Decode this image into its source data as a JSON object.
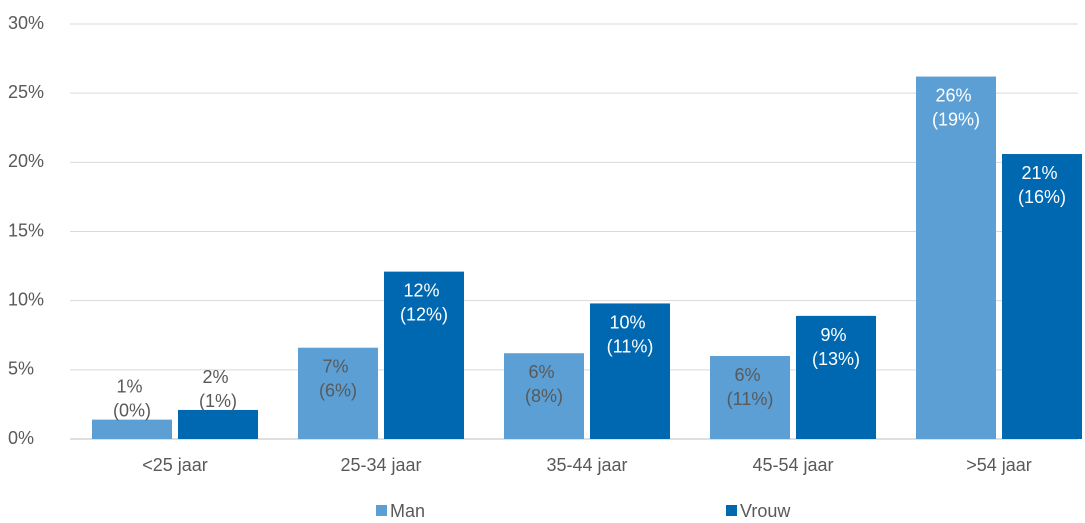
{
  "chart_data": {
    "type": "bar",
    "categories": [
      "<25 jaar",
      "25-34 jaar",
      "35-44 jaar",
      "45-54 jaar",
      ">54 jaar"
    ],
    "series": [
      {
        "name": "Man",
        "color": "#5b9fd4",
        "values": [
          1.4,
          6.6,
          6.2,
          6.0,
          26.2
        ],
        "value_labels": [
          "1% (0%)",
          "7% (6%)",
          "6% (8%)",
          "6% (11%)",
          "26% (19%)"
        ]
      },
      {
        "name": "Vrouw",
        "color": "#0068b0",
        "values": [
          2.1,
          12.1,
          9.8,
          8.9,
          20.6
        ],
        "value_labels": [
          "2% (1%)",
          "12% (12%)",
          "10% (11%)",
          "9% (13%)",
          "21% (16%)"
        ]
      }
    ],
    "ylim": [
      0,
      30
    ],
    "yticks": [
      {
        "value": 0,
        "label": "0%"
      },
      {
        "value": 5,
        "label": "5%"
      },
      {
        "value": 10,
        "label": "10%"
      },
      {
        "value": 15,
        "label": "15%"
      },
      {
        "value": 20,
        "label": "20%"
      },
      {
        "value": 25,
        "label": "25%"
      },
      {
        "value": 30,
        "label": "30%"
      }
    ],
    "grid": true,
    "legend": "bottom"
  }
}
